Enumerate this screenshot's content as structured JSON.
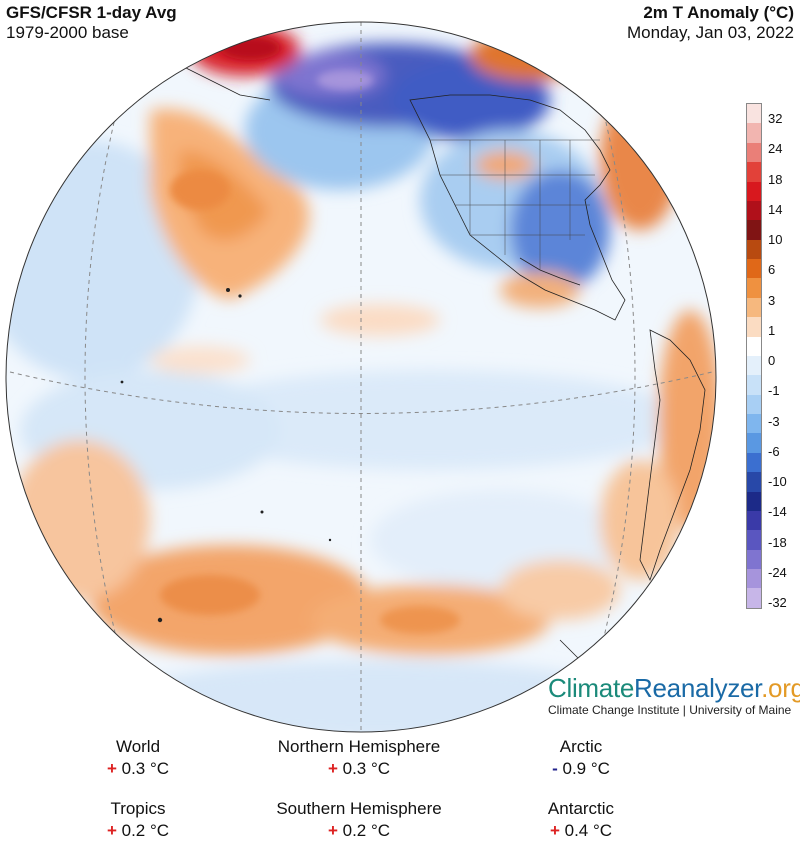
{
  "header": {
    "left_title": "GFS/CFSR 1-day Avg",
    "left_subtitle": "1979-2000 base",
    "right_title": "2m T Anomaly (°C)",
    "right_date": "Monday, Jan 03, 2022"
  },
  "legend": {
    "labels": [
      "32",
      "24",
      "18",
      "14",
      "10",
      "6",
      "3",
      "1",
      "0",
      "-1",
      "-3",
      "-6",
      "-10",
      "-14",
      "-18",
      "-24",
      "-32"
    ],
    "colors": [
      "#f9e3e0",
      "#f2b5b0",
      "#ea7f78",
      "#e24139",
      "#d8181e",
      "#b0101a",
      "#801414",
      "#b84a10",
      "#e06818",
      "#ef9140",
      "#f6b87e",
      "#fbdcc2",
      "#ffffff",
      "#e4f0fb",
      "#c8e1f8",
      "#a8cff4",
      "#7fb6ee",
      "#5a98e2",
      "#3b6fd0",
      "#2848a8",
      "#1c2a88",
      "#3a3aa8",
      "#5a56c0",
      "#7f74d0",
      "#a694dc",
      "#c7b6e8"
    ]
  },
  "branding": {
    "climate": "Climate",
    "reanalyzer": "Reanalyzer",
    "org": ".org",
    "institute": "Climate Change Institute | University of Maine"
  },
  "stats": [
    {
      "region": "World",
      "sign": "+",
      "value": "0.3 °C"
    },
    {
      "region": "Northern Hemisphere",
      "sign": "+",
      "value": "0.3 °C"
    },
    {
      "region": "Arctic",
      "sign": "-",
      "value": "0.9 °C"
    },
    {
      "region": "Tropics",
      "sign": "+",
      "value": "0.2 °C"
    },
    {
      "region": "Southern Hemisphere",
      "sign": "+",
      "value": "0.2 °C"
    },
    {
      "region": "Antarctic",
      "sign": "+",
      "value": "0.4 °C"
    }
  ]
}
